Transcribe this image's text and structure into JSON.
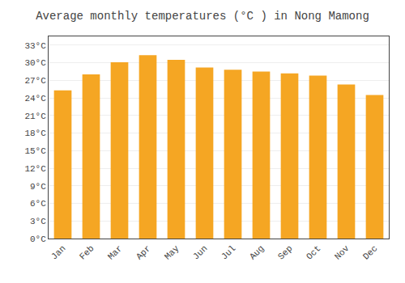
{
  "chart_data": {
    "type": "bar",
    "title": "Average monthly temperatures (°C ) in Nong Mamong",
    "categories": [
      "Jan",
      "Feb",
      "Mar",
      "Apr",
      "May",
      "Jun",
      "Jul",
      "Aug",
      "Sep",
      "Oct",
      "Nov",
      "Dec"
    ],
    "values": [
      25.3,
      28.0,
      30.1,
      31.3,
      30.5,
      29.2,
      28.8,
      28.5,
      28.2,
      27.8,
      26.3,
      24.5
    ],
    "color": "#F5A623",
    "ylim": [
      0,
      34.5
    ],
    "yticks": [
      {
        "value": 0,
        "label": "0°C"
      },
      {
        "value": 3,
        "label": "3°C"
      },
      {
        "value": 6,
        "label": "6°C"
      },
      {
        "value": 9,
        "label": "9°C"
      },
      {
        "value": 12,
        "label": "12°C"
      },
      {
        "value": 15,
        "label": "15°C"
      },
      {
        "value": 18,
        "label": "18°C"
      },
      {
        "value": 21,
        "label": "21°C"
      },
      {
        "value": 24,
        "label": "24°C"
      },
      {
        "value": 27,
        "label": "27°C"
      },
      {
        "value": 30,
        "label": "30°C"
      },
      {
        "value": 33,
        "label": "33°C"
      }
    ],
    "grid": true
  }
}
